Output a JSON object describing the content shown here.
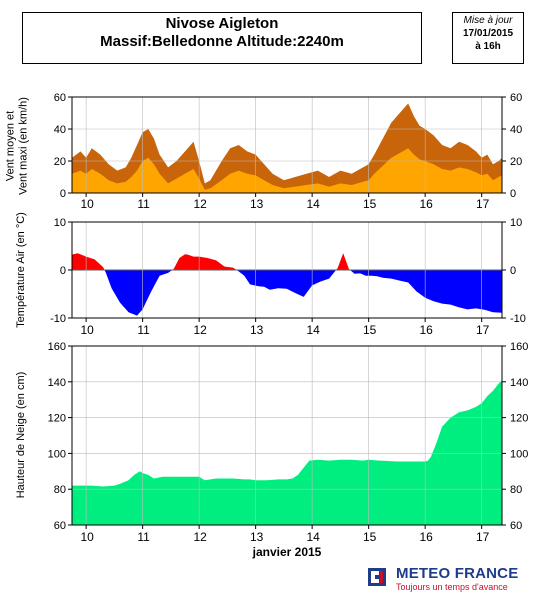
{
  "header": {
    "title_line1": "Nivose Aigleton",
    "title_line2": "Massif:Belledonne Altitude:2240m",
    "update_label": "Mise à jour",
    "update_date": "17/01/2015",
    "update_time": "à 16h"
  },
  "footer": {
    "x_axis_title": "janvier 2015",
    "brand": "METEO FRANCE",
    "tagline": "Toujours un temps d'avance"
  },
  "colors": {
    "wind_max": "#c8640a",
    "wind_mean": "#ffa500",
    "temp_positive": "#ff0000",
    "temp_negative": "#0000ff",
    "snow": "#00ee80",
    "brand_blue": "#1f3c8a",
    "brand_red": "#c8102e"
  },
  "chart_data": [
    {
      "type": "area",
      "ylabel": "Vent moyen et Vent maxi (en km/h)",
      "xlim": [
        9.75,
        17.36
      ],
      "ylim": [
        0,
        60
      ],
      "yticks": [
        0,
        20,
        40,
        60
      ],
      "xticks": [
        10,
        11,
        12,
        13,
        14,
        15,
        16,
        17
      ],
      "series": [
        {
          "role": "max",
          "x": [
            9.75,
            9.9,
            10.0,
            10.1,
            10.25,
            10.4,
            10.55,
            10.7,
            10.8,
            10.9,
            11.0,
            11.1,
            11.2,
            11.3,
            11.45,
            11.6,
            11.75,
            11.9,
            12.0,
            12.1,
            12.2,
            12.4,
            12.55,
            12.7,
            12.85,
            13.0,
            13.15,
            13.3,
            13.5,
            13.7,
            13.9,
            14.1,
            14.3,
            14.5,
            14.7,
            14.9,
            15.0,
            15.1,
            15.25,
            15.4,
            15.5,
            15.6,
            15.7,
            15.8,
            15.9,
            16.0,
            16.15,
            16.3,
            16.45,
            16.6,
            16.75,
            16.9,
            17.0,
            17.1,
            17.2,
            17.3,
            17.36
          ],
          "y": [
            22,
            26,
            22,
            28,
            24,
            18,
            14,
            16,
            22,
            30,
            38,
            40,
            34,
            24,
            16,
            20,
            26,
            32,
            20,
            6,
            8,
            20,
            28,
            30,
            26,
            24,
            18,
            12,
            8,
            10,
            12,
            14,
            10,
            14,
            12,
            16,
            18,
            24,
            34,
            44,
            48,
            52,
            56,
            48,
            42,
            40,
            36,
            30,
            28,
            32,
            30,
            26,
            22,
            24,
            18,
            20,
            22
          ]
        },
        {
          "role": "mean",
          "x": [
            9.75,
            9.9,
            10.0,
            10.1,
            10.25,
            10.4,
            10.55,
            10.7,
            10.8,
            10.9,
            11.0,
            11.1,
            11.2,
            11.3,
            11.45,
            11.6,
            11.75,
            11.9,
            12.0,
            12.1,
            12.2,
            12.4,
            12.55,
            12.7,
            12.85,
            13.0,
            13.15,
            13.3,
            13.5,
            13.7,
            13.9,
            14.1,
            14.3,
            14.5,
            14.7,
            14.9,
            15.0,
            15.1,
            15.25,
            15.4,
            15.5,
            15.6,
            15.7,
            15.8,
            15.9,
            16.0,
            16.15,
            16.3,
            16.45,
            16.6,
            16.75,
            16.9,
            17.0,
            17.1,
            17.2,
            17.3,
            17.36
          ],
          "y": [
            12,
            14,
            12,
            15,
            12,
            8,
            6,
            7,
            10,
            14,
            20,
            22,
            18,
            12,
            6,
            9,
            12,
            15,
            9,
            2,
            3,
            8,
            12,
            14,
            12,
            11,
            8,
            5,
            3,
            4,
            5,
            6,
            4,
            6,
            5,
            7,
            8,
            12,
            17,
            22,
            24,
            26,
            28,
            24,
            21,
            20,
            18,
            15,
            14,
            16,
            15,
            13,
            11,
            12,
            8,
            10,
            11
          ]
        }
      ]
    },
    {
      "type": "area",
      "ylabel": "Température Air (en °C)",
      "xlim": [
        9.75,
        17.36
      ],
      "ylim": [
        -10,
        10
      ],
      "yticks": [
        -10,
        0,
        10
      ],
      "xticks": [
        10,
        11,
        12,
        13,
        14,
        15,
        16,
        17
      ],
      "series": [
        {
          "role": "temperature",
          "x": [
            9.75,
            9.85,
            10.0,
            10.15,
            10.3,
            10.35,
            10.45,
            10.6,
            10.75,
            10.9,
            11.0,
            11.15,
            11.3,
            11.45,
            11.55,
            11.65,
            11.75,
            11.8,
            11.9,
            12.0,
            12.15,
            12.3,
            12.45,
            12.6,
            12.7,
            12.8,
            12.9,
            13.05,
            13.15,
            13.25,
            13.4,
            13.55,
            13.7,
            13.85,
            14.0,
            14.15,
            14.3,
            14.45,
            14.55,
            14.65,
            14.75,
            14.85,
            14.95,
            15.05,
            15.15,
            15.25,
            15.4,
            15.55,
            15.7,
            15.85,
            16.0,
            16.15,
            16.3,
            16.45,
            16.6,
            16.75,
            16.9,
            17.05,
            17.2,
            17.36
          ],
          "y": [
            3.2,
            3.5,
            2.8,
            2.2,
            0.6,
            -0.6,
            -3.8,
            -6.8,
            -8.8,
            -9.5,
            -8.2,
            -4.5,
            -1.2,
            -0.6,
            0.2,
            2.5,
            3.3,
            3.2,
            2.8,
            2.8,
            2.5,
            2.0,
            0.7,
            0.5,
            -0.3,
            -1.2,
            -3.0,
            -3.4,
            -3.5,
            -4.1,
            -3.8,
            -3.9,
            -4.8,
            -5.6,
            -3.2,
            -2.4,
            -1.8,
            0.4,
            3.5,
            0.2,
            -0.8,
            -0.7,
            -1.2,
            -1.2,
            -1.3,
            -1.6,
            -1.8,
            -2.2,
            -2.6,
            -4.5,
            -5.8,
            -6.5,
            -7.0,
            -7.2,
            -7.8,
            -8.2,
            -8.0,
            -8.3,
            -8.8,
            -8.9
          ]
        }
      ]
    },
    {
      "type": "area",
      "ylabel": "Hauteur de Neige (en cm)",
      "xlabel": "janvier 2015",
      "xlim": [
        9.75,
        17.36
      ],
      "ylim": [
        60,
        160
      ],
      "yticks": [
        60,
        80,
        100,
        120,
        140,
        160
      ],
      "xticks": [
        10,
        11,
        12,
        13,
        14,
        15,
        16,
        17
      ],
      "series": [
        {
          "role": "snow_depth",
          "x": [
            9.75,
            10.1,
            10.3,
            10.5,
            10.6,
            10.75,
            10.85,
            10.95,
            11.0,
            11.1,
            11.2,
            11.35,
            11.5,
            11.8,
            12.0,
            12.1,
            12.3,
            12.6,
            12.8,
            12.9,
            13.0,
            13.2,
            13.4,
            13.55,
            13.65,
            13.75,
            13.8,
            13.95,
            14.1,
            14.3,
            14.5,
            14.7,
            14.9,
            15.0,
            15.2,
            15.5,
            15.8,
            16.0,
            16.05,
            16.1,
            16.2,
            16.3,
            16.45,
            16.6,
            16.75,
            16.9,
            17.0,
            17.1,
            17.2,
            17.3,
            17.36
          ],
          "y": [
            82,
            82,
            81.5,
            82,
            83,
            85,
            88,
            90,
            89,
            88,
            86,
            87,
            87,
            87,
            87,
            85,
            86,
            86,
            85.5,
            85.5,
            85,
            85,
            85.5,
            85.5,
            86,
            88,
            90,
            96,
            96.5,
            96,
            96.5,
            96.5,
            96,
            96.5,
            96,
            95.5,
            95.5,
            95.5,
            96,
            98,
            106,
            115,
            120,
            123,
            124,
            126,
            128,
            132,
            135,
            139,
            141
          ]
        }
      ]
    }
  ]
}
